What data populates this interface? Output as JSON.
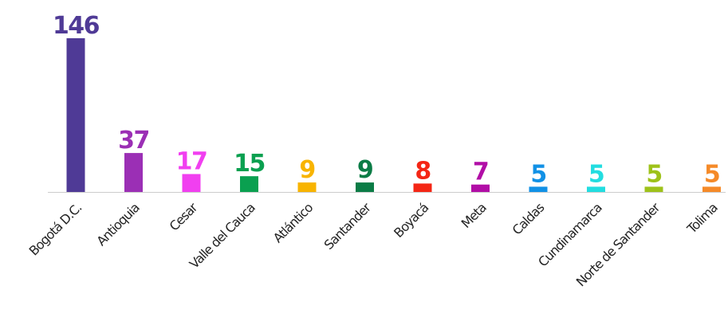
{
  "chart_data": {
    "type": "bar",
    "title": "",
    "xlabel": "",
    "ylabel": "",
    "categories": [
      "Bogotá D.C.",
      "Antioquia",
      "Cesar",
      "Valle del Cauca",
      "Atlántico",
      "Santander",
      "Boyacá",
      "Meta",
      "Caldas",
      "Cundinamarca",
      "Norte de Santander",
      "Tolima"
    ],
    "values": [
      146,
      37,
      17,
      15,
      9,
      9,
      8,
      7,
      5,
      5,
      5,
      5
    ],
    "colors": [
      "#4f3a96",
      "#9b2fb5",
      "#f13ff0",
      "#0aa050",
      "#f8b400",
      "#0b7c46",
      "#f42615",
      "#b10ea6",
      "#1191e6",
      "#22dde0",
      "#9ec21a",
      "#f58a28"
    ],
    "ylim": [
      0,
      146
    ],
    "grid": false,
    "legend": "none",
    "data_labels": true
  }
}
